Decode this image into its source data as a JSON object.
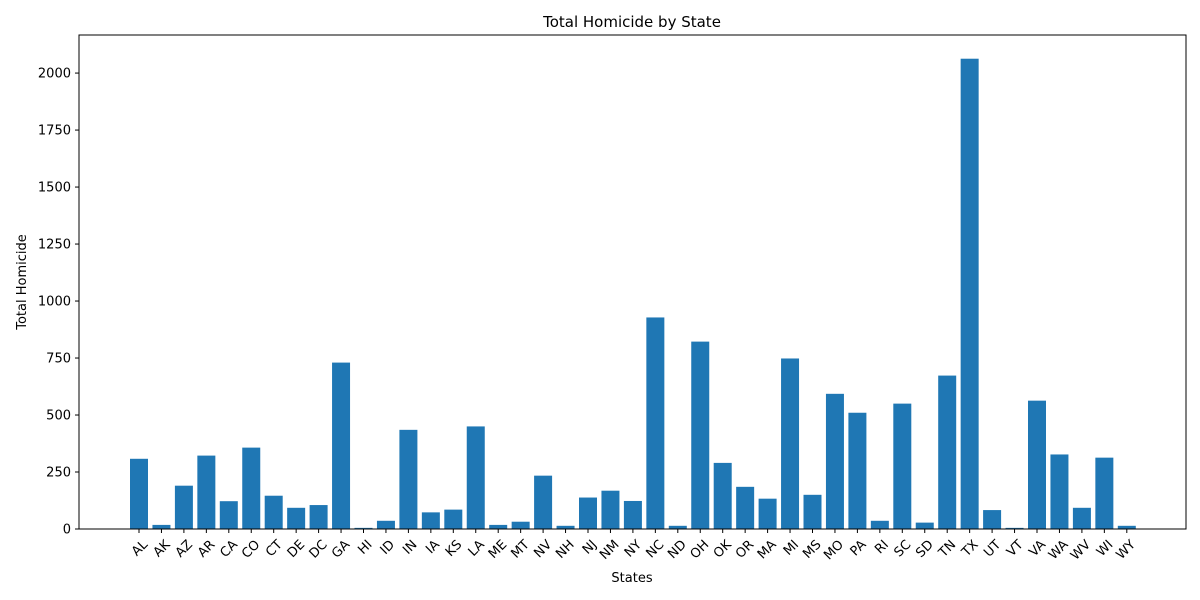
{
  "chart_data": {
    "type": "bar",
    "title": "Total Homicide by State",
    "xlabel": "States",
    "ylabel": "Total Homicide",
    "ylim": [
      0,
      2167
    ],
    "yticks": [
      0,
      250,
      500,
      750,
      1000,
      1250,
      1500,
      1750,
      2000
    ],
    "grid": false,
    "bar_color": "#1f77b4",
    "categories": [
      "AL",
      "AK",
      "AZ",
      "AR",
      "CA",
      "CO",
      "CT",
      "DE",
      "DC",
      "GA",
      "HI",
      "ID",
      "IN",
      "IA",
      "KS",
      "LA",
      "ME",
      "MT",
      "NV",
      "NH",
      "NJ",
      "NM",
      "NY",
      "NC",
      "ND",
      "OH",
      "OK",
      "OR",
      "MA",
      "MI",
      "MS",
      "MO",
      "PA",
      "RI",
      "SC",
      "SD",
      "TN",
      "TX",
      "UT",
      "VT",
      "VA",
      "WA",
      "WV",
      "WI",
      "WY"
    ],
    "values": [
      308,
      18,
      190,
      322,
      122,
      357,
      146,
      93,
      105,
      730,
      5,
      36,
      435,
      73,
      85,
      450,
      18,
      32,
      234,
      14,
      138,
      168,
      123,
      928,
      14,
      822,
      290,
      185,
      133,
      748,
      150,
      593,
      510,
      36,
      550,
      28,
      673,
      2063,
      83,
      5,
      563,
      327,
      93,
      313,
      14
    ]
  }
}
